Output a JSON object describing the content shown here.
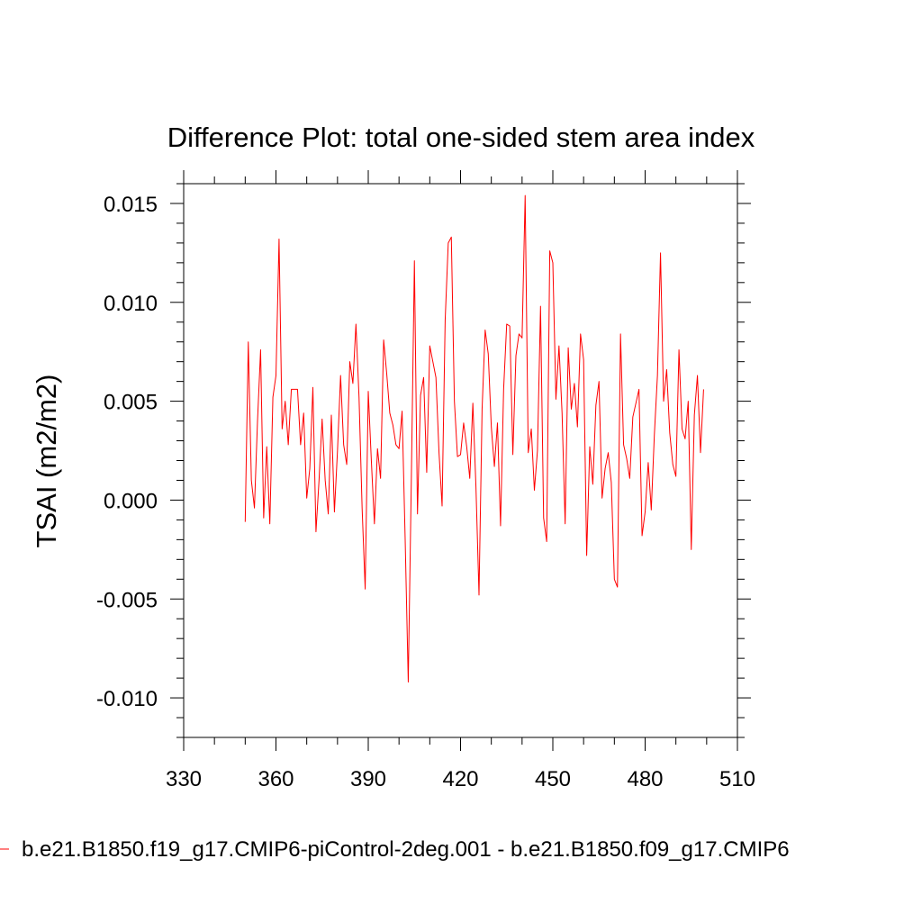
{
  "chart_data": {
    "type": "line",
    "title": "Difference Plot: total one-sided stem area index",
    "ylabel": "TSAI  (m2/m2)",
    "xlabel": "",
    "xlim": [
      330,
      510
    ],
    "ylim": [
      -0.012,
      0.016
    ],
    "xticks": [
      330,
      360,
      390,
      420,
      450,
      480,
      510
    ],
    "xtick_labels": [
      "330",
      "360",
      "390",
      "420",
      "450",
      "480",
      "510"
    ],
    "yticks": [
      -0.01,
      -0.005,
      0.0,
      0.005,
      0.01,
      0.015
    ],
    "ytick_labels": [
      "-0.010",
      "-0.005",
      "0.000",
      "0.005",
      "0.010",
      "0.015"
    ],
    "grid": false,
    "legend_position": "bottom",
    "series": [
      {
        "name": "b.e21.B1850.f19_g17.CMIP6-piControl-2deg.001 - b.e21.B1850.f09_g17.CMIP6",
        "color": "#ff0000",
        "x_start": 350,
        "x_step": 1,
        "values": [
          -0.0011,
          0.008,
          0.001,
          -0.0004,
          0.004,
          0.0076,
          -0.0009,
          0.0027,
          -0.0012,
          0.0052,
          0.0063,
          0.0132,
          0.0036,
          0.005,
          0.0028,
          0.0056,
          0.0056,
          0.0056,
          0.0028,
          0.0044,
          0.0001,
          0.0016,
          0.0057,
          -0.0016,
          0.001,
          0.0041,
          0.001,
          -0.0007,
          0.0043,
          -0.0006,
          0.0025,
          0.0063,
          0.0028,
          0.0018,
          0.007,
          0.0059,
          0.0089,
          0.0052,
          -0.0004,
          -0.0045,
          0.0055,
          0.002,
          -0.0012,
          0.0026,
          0.0011,
          0.0081,
          0.0064,
          0.0044,
          0.0038,
          0.0028,
          0.0026,
          0.0045,
          -0.002,
          -0.0092,
          0.001,
          0.0121,
          -0.0007,
          0.0053,
          0.0062,
          0.0014,
          0.0078,
          0.007,
          0.0062,
          0.0024,
          -0.0003,
          0.0091,
          0.013,
          0.0133,
          0.005,
          0.0022,
          0.0023,
          0.0039,
          0.0027,
          0.0011,
          0.0049,
          0.0007,
          -0.0048,
          0.0046,
          0.0086,
          0.0074,
          0.0037,
          0.0017,
          0.0039,
          -0.0013,
          0.0056,
          0.0089,
          0.0088,
          0.0023,
          0.0073,
          0.0084,
          0.0082,
          0.0154,
          0.0024,
          0.0036,
          0.0005,
          0.0025,
          0.0098,
          -0.0009,
          -0.0021,
          0.0126,
          0.012,
          0.0051,
          0.0078,
          0.0044,
          -0.0012,
          0.0077,
          0.0046,
          0.0059,
          0.0037,
          0.0084,
          0.0071,
          -0.0028,
          0.0027,
          0.0008,
          0.0048,
          0.006,
          0.0001,
          0.0016,
          0.0024,
          0.0009,
          -0.004,
          -0.0044,
          0.0084,
          0.0028,
          0.0021,
          0.0011,
          0.0042,
          0.0049,
          0.0056,
          -0.0018,
          -0.0006,
          0.0019,
          -0.0005,
          0.0033,
          0.0063,
          0.0125,
          0.005,
          0.0066,
          0.0034,
          0.0018,
          0.0012,
          0.0076,
          0.0036,
          0.0031,
          0.005,
          -0.0025,
          0.0043,
          0.0063,
          0.0024,
          0.0056
        ]
      }
    ]
  }
}
